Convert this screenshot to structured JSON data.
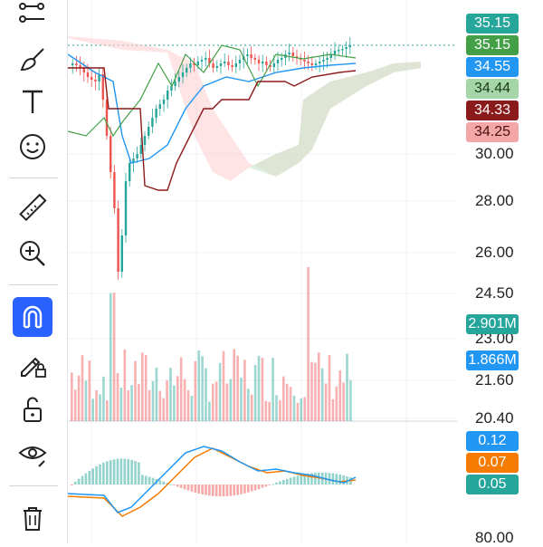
{
  "toolbar": {
    "tools": [
      "trend-line-tool",
      "brush-tool",
      "text-tool",
      "emoji-tool",
      "ruler-tool",
      "zoom-in-tool",
      "magnet-tool",
      "lock-drawing-tool",
      "unlock-tool",
      "hide-drawings-tool",
      "delete-drawings-tool"
    ],
    "active_tool": "magnet-tool",
    "active_color": "#2962ff"
  },
  "price_axis": {
    "ticks": [
      "30.00",
      "28.00",
      "26.00",
      "24.50",
      "23.00",
      "21.60",
      "20.40",
      "80.00"
    ],
    "badges": [
      {
        "label": "35.15",
        "color": "#26a69a",
        "text_color": "#ffffff"
      },
      {
        "label": "35.15",
        "color": "#43a047",
        "text_color": "#ffffff"
      },
      {
        "label": "34.55",
        "color": "#2196f3",
        "text_color": "#ffffff"
      },
      {
        "label": "34.44",
        "color": "#a5d6a7",
        "text_color": "#1b3a1b"
      },
      {
        "label": "34.33",
        "color": "#8b1a1a",
        "text_color": "#ffffff"
      },
      {
        "label": "34.25",
        "color": "#f4a7a7",
        "text_color": "#4a1010"
      }
    ]
  },
  "volume_axis": {
    "badges": [
      {
        "label": "2.901M",
        "color": "#26a69a",
        "text_color": "#ffffff"
      },
      {
        "label": "1.866M",
        "color": "#2196f3",
        "text_color": "#ffffff"
      }
    ]
  },
  "macd_axis": {
    "badges": [
      {
        "label": "0.12",
        "color": "#2196f3",
        "text_color": "#ffffff"
      },
      {
        "label": "0.07",
        "color": "#f57c00",
        "text_color": "#ffffff"
      },
      {
        "label": "0.05",
        "color": "#26a69a",
        "text_color": "#ffffff"
      }
    ]
  },
  "colors": {
    "up": "#26a69a",
    "down": "#ef5350",
    "cloud_bull": "#c8e6c9",
    "cloud_bear": "#ffcdd2",
    "grid": "#eef0f4"
  }
}
